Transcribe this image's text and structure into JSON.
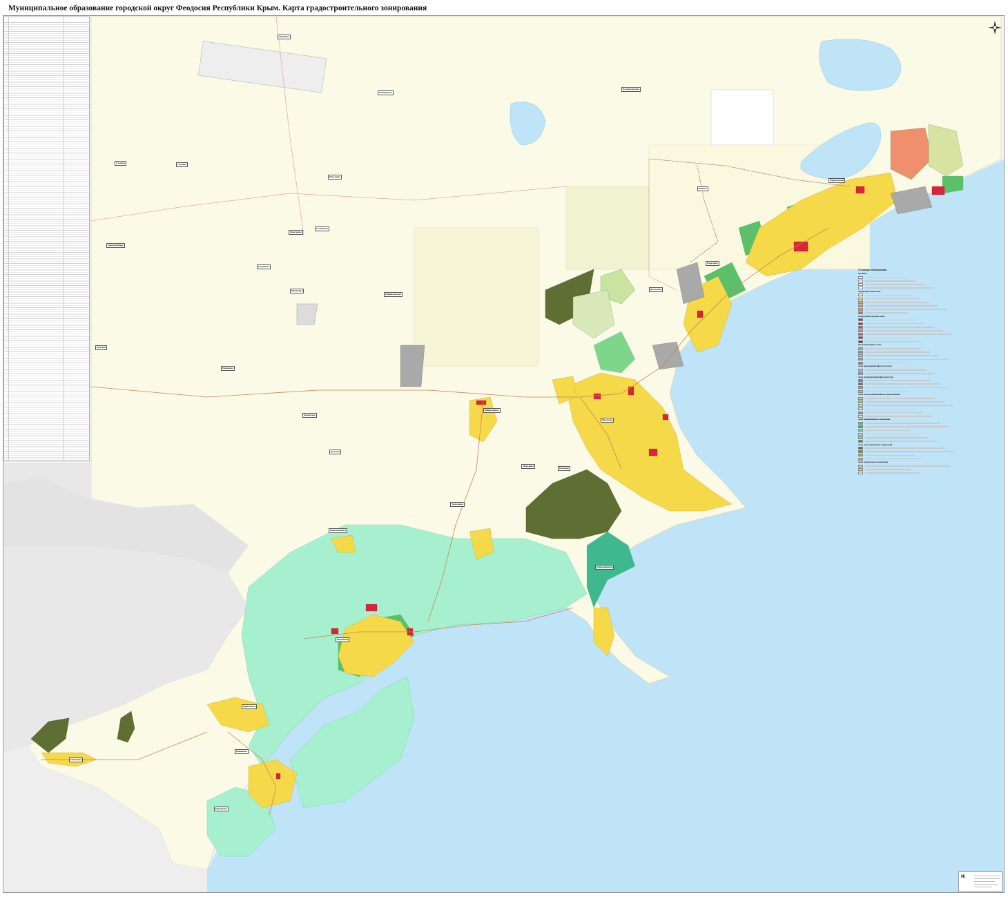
{
  "title": "Муниципальное образование городской округ Феодосия Республики Крым. Карта градостроительного зонирования",
  "colors": {
    "sea": "#bfe4f8",
    "land": "#fbfae6",
    "background_area": "#ececec",
    "residential": "#f5d949",
    "public": "#d9253a",
    "recreation": "#5cc06a",
    "forest": "#5f6e32",
    "resort": "#a6f0d0",
    "industry": "#a9a9a9",
    "salmon": "#f08f6c",
    "lake": "#bfe4f8"
  },
  "map": {
    "icons": [
      "compass-rose-icon"
    ]
  },
  "places": [
    {
      "id": "feodosiya",
      "label": "Феодосия"
    },
    {
      "id": "primorsky",
      "label": "Приморский"
    },
    {
      "id": "beregovoe",
      "label": "Береговое"
    },
    {
      "id": "koktebel",
      "label": "Коктебель"
    },
    {
      "id": "ordzhonikidze",
      "label": "Орджоникидзе"
    },
    {
      "id": "shchebetovka",
      "label": "Щебетовка"
    },
    {
      "id": "nanikovo",
      "label": "Наниково"
    },
    {
      "id": "kurortnoe",
      "label": "Курортное"
    },
    {
      "id": "otvazhnoe",
      "label": "Отважное"
    },
    {
      "id": "yuzhnoe",
      "label": "Южное"
    },
    {
      "id": "zhuravki",
      "label": "Журавки"
    },
    {
      "id": "vladislavovka",
      "label": "Владиславовка"
    },
    {
      "id": "pionerskoe",
      "label": "Пионерское"
    },
    {
      "id": "stepnoe",
      "label": "Степное"
    },
    {
      "id": "sadovoe",
      "label": "Садовое"
    },
    {
      "id": "nasypnoe",
      "label": "Насыпное"
    },
    {
      "id": "podgornoe",
      "label": "Подгорное"
    },
    {
      "id": "solnechnoe",
      "label": "Солнечное"
    },
    {
      "id": "grushevka",
      "label": "Грушевка"
    },
    {
      "id": "izyumovka",
      "label": "Изюмовка"
    },
    {
      "id": "nizhnegorskoe",
      "label": "Нижнегорское"
    },
    {
      "id": "krasnoe",
      "label": "Красное"
    },
    {
      "id": "ivanovka",
      "label": "Ивановка"
    },
    {
      "id": "pervomayskoe",
      "label": "Первомайское"
    },
    {
      "id": "blizhnee",
      "label": "Ближнее"
    },
    {
      "id": "maryevka",
      "label": "Марьевка"
    },
    {
      "id": "vinogradnoe",
      "label": "Виноградное"
    },
    {
      "id": "kirovskoe",
      "label": "Кировское"
    },
    {
      "id": "dalnee",
      "label": "Дальнее"
    },
    {
      "id": "vostochnoe",
      "label": "Восточное"
    },
    {
      "id": "topolevka",
      "label": "Тополевка"
    },
    {
      "id": "novopokrovka",
      "label": "Новопокровка"
    }
  ],
  "legend_right": {
    "heading": "Условные обозначения",
    "sections": [
      {
        "label": "Границы",
        "swatches": [
          "#ffffff",
          "#ffffff",
          "#ffffff",
          "#ffffff"
        ]
      },
      {
        "label": "Территориальные зоны",
        "swatches": [
          "#fff4a8",
          "#f5d949",
          "#f0b429",
          "#e88f2a",
          "#f08f6c",
          "#e25a5a"
        ]
      },
      {
        "label": "Общественно-деловые зоны",
        "swatches": [
          "#d9253a",
          "#c9174f",
          "#e0355f",
          "#f06f8a",
          "#c25b7a",
          "#b03050",
          "#9a2040"
        ]
      },
      {
        "label": "Производственные зоны",
        "swatches": [
          "#a9a9a9",
          "#8c8c8c",
          "#bdbdbd",
          "#9a8fa8",
          "#7d7d9a"
        ]
      },
      {
        "label": "Зоны инженерной инфраструктуры",
        "swatches": [
          "#c9a0dc",
          "#b38fd1"
        ]
      },
      {
        "label": "Зоны транспортной инфраструктуры",
        "swatches": [
          "#7f7f7f",
          "#6b6b6b",
          "#999999",
          "#b5b5b5"
        ]
      },
      {
        "label": "Зоны сельскохозяйственного использования",
        "swatches": [
          "#c9d98b",
          "#a3b85a",
          "#e6eab0",
          "#d8e3a2",
          "#8fa04a",
          "#f3f5cf"
        ]
      },
      {
        "label": "Зоны рекреационного назначения",
        "swatches": [
          "#5cc06a",
          "#3fa85a",
          "#7ed68a",
          "#a6f0d0",
          "#6fd0b0",
          "#2e9a7a"
        ]
      },
      {
        "label": "Зоны особо охраняемых территорий",
        "swatches": [
          "#5f6e32",
          "#8a7a2a",
          "#b59a3a",
          "#c6b54a"
        ]
      },
      {
        "label": "Зоны специального назначения",
        "swatches": [
          "#bcbcbc",
          "#d0d0d0",
          "#e0e0e0"
        ]
      }
    ]
  }
}
